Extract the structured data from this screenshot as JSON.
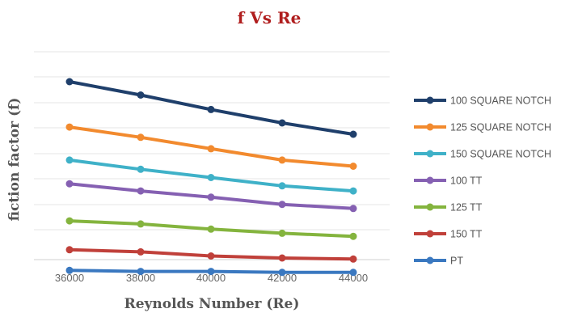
{
  "chart_data": {
    "type": "line",
    "title": "f Vs Re",
    "xlabel": "Reynolds Number (Re)",
    "ylabel": "fiction factor (f)",
    "x": [
      36000,
      38000,
      40000,
      42000,
      44000
    ],
    "ylim": [
      0,
      10
    ],
    "grid": true,
    "legend_position": "right",
    "series": [
      {
        "name": "100 SQUARE NOTCH",
        "color": "#1f3f6b",
        "values": [
          8.55,
          7.9,
          7.2,
          6.55,
          6.0
        ]
      },
      {
        "name": "125 SQUARE NOTCH",
        "color": "#f28a2e",
        "values": [
          6.35,
          5.85,
          5.3,
          4.75,
          4.45
        ]
      },
      {
        "name": "150 SQUARE NOTCH",
        "color": "#3fb1c8",
        "values": [
          4.75,
          4.3,
          3.9,
          3.5,
          3.25
        ]
      },
      {
        "name": "100 TT",
        "color": "#8560b2",
        "values": [
          3.6,
          3.25,
          2.95,
          2.6,
          2.4
        ]
      },
      {
        "name": "125 TT",
        "color": "#84b43e",
        "values": [
          1.8,
          1.65,
          1.4,
          1.2,
          1.05
        ]
      },
      {
        "name": "150 TT",
        "color": "#c0403a",
        "values": [
          0.4,
          0.3,
          0.1,
          0.0,
          -0.05
        ]
      },
      {
        "name": "PT",
        "color": "#3a78c0",
        "values": [
          -0.6,
          -0.65,
          -0.65,
          -0.7,
          -0.7
        ]
      }
    ]
  }
}
